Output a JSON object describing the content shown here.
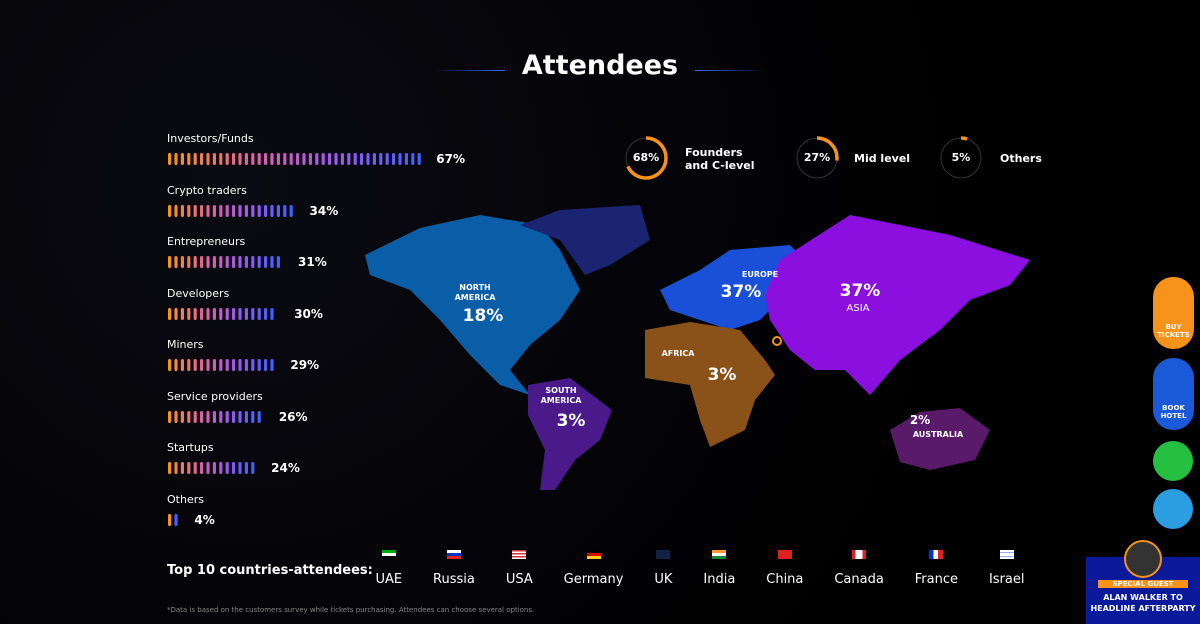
{
  "header": {
    "title": "Attendees"
  },
  "segments": [
    {
      "label": "Investors/Funds",
      "value": 67,
      "value_label": "67%"
    },
    {
      "label": "Crypto traders",
      "value": 34,
      "value_label": "34%"
    },
    {
      "label": "Entrepreneurs",
      "value": 31,
      "value_label": "31%"
    },
    {
      "label": "Developers",
      "value": 30,
      "value_label": "30%"
    },
    {
      "label": "Miners",
      "value": 29,
      "value_label": "29%"
    },
    {
      "label": "Service providers",
      "value": 26,
      "value_label": "26%"
    },
    {
      "label": "Startups",
      "value": 24,
      "value_label": "24%"
    },
    {
      "label": "Others",
      "value": 4,
      "value_label": "4%"
    }
  ],
  "levels": [
    {
      "label": "Founders and C-level",
      "value": 68,
      "value_label": "68%"
    },
    {
      "label": "Mid level",
      "value": 27,
      "value_label": "27%"
    },
    {
      "label": "Others",
      "value": 5,
      "value_label": "5%"
    }
  ],
  "regions": [
    {
      "name": "NORTH AMERICA",
      "share": "18%"
    },
    {
      "name": "EUROPE",
      "share": "37%"
    },
    {
      "name": "ASIA",
      "share": "37%"
    },
    {
      "name": "AFRICA",
      "share": "3%"
    },
    {
      "name": "SOUTH AMERICA",
      "share": "3%"
    },
    {
      "name": "AUSTRALIA",
      "share": "2%"
    }
  ],
  "countries": {
    "label": "Top 10 countries-attendees:",
    "items": [
      "UAE",
      "Russia",
      "USA",
      "Germany",
      "UK",
      "India",
      "China",
      "Canada",
      "France",
      "Israel"
    ]
  },
  "footnote": "*Data is based on the customers survey while tickets purchasing. Attendees can choose several options.",
  "buttons": {
    "tickets": "BUY TICKETS",
    "hotel": "BOOK HOTEL"
  },
  "banner": {
    "tag": "SPECIAL GUEST",
    "text": "ALAN WALKER TO HEADLINE AFTERPARTY"
  }
}
